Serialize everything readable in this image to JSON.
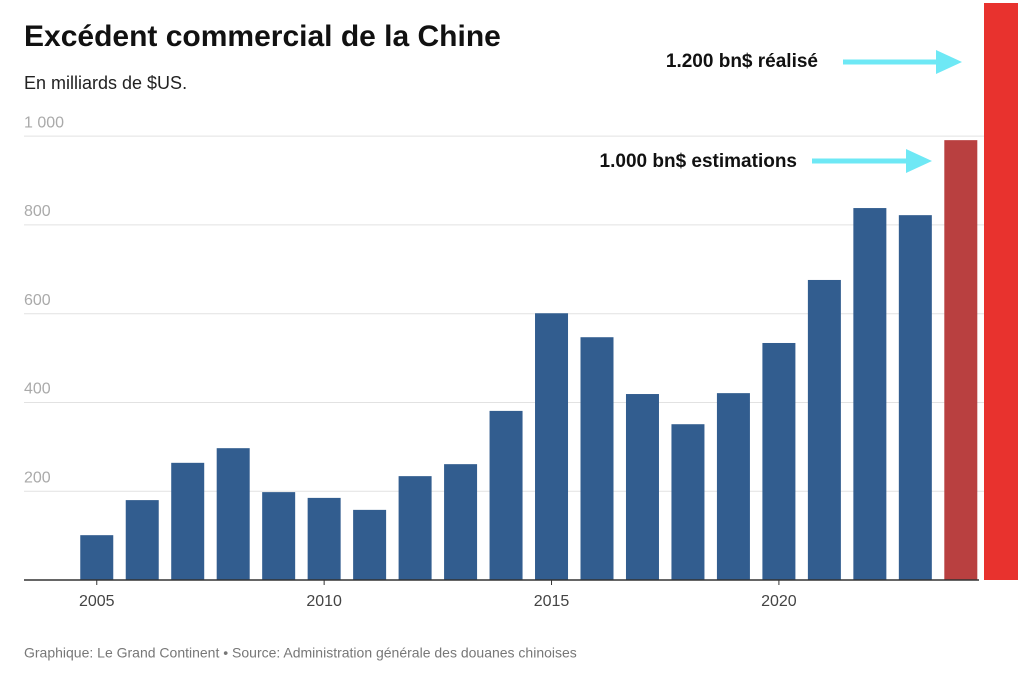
{
  "chart_data": {
    "type": "bar",
    "title": "Excédent commercial de la Chine",
    "subtitle": "En milliards de $US.",
    "source": "Graphique: Le Grand Continent • Source: Administration générale des douanes chinoises",
    "x": [
      2005,
      2006,
      2007,
      2008,
      2009,
      2010,
      2011,
      2012,
      2013,
      2014,
      2015,
      2016,
      2017,
      2018,
      2019,
      2020,
      2021,
      2022,
      2023,
      2024
    ],
    "values": [
      101,
      180,
      264,
      297,
      198,
      185,
      158,
      234,
      261,
      381,
      601,
      547,
      419,
      351,
      421,
      534,
      676,
      838,
      822,
      991
    ],
    "colors": [
      "#325d8f",
      "#325d8f",
      "#325d8f",
      "#325d8f",
      "#325d8f",
      "#325d8f",
      "#325d8f",
      "#325d8f",
      "#325d8f",
      "#325d8f",
      "#325d8f",
      "#325d8f",
      "#325d8f",
      "#325d8f",
      "#325d8f",
      "#325d8f",
      "#325d8f",
      "#325d8f",
      "#325d8f",
      "#b94040"
    ],
    "extra_bar": {
      "value": 1300,
      "color": "#e8322e"
    },
    "annotations": [
      "1.200 bn$ réalisé",
      "1.000 bn$ estimations"
    ],
    "xlim": [
      2003.4,
      2024.4
    ],
    "xticks": [
      2005,
      2010,
      2015,
      2020
    ],
    "ylim": [
      0,
      1300
    ],
    "yticks": [
      200,
      400,
      600,
      800,
      {
        "value": 1000,
        "label": "1 000"
      }
    ],
    "grid": true
  }
}
